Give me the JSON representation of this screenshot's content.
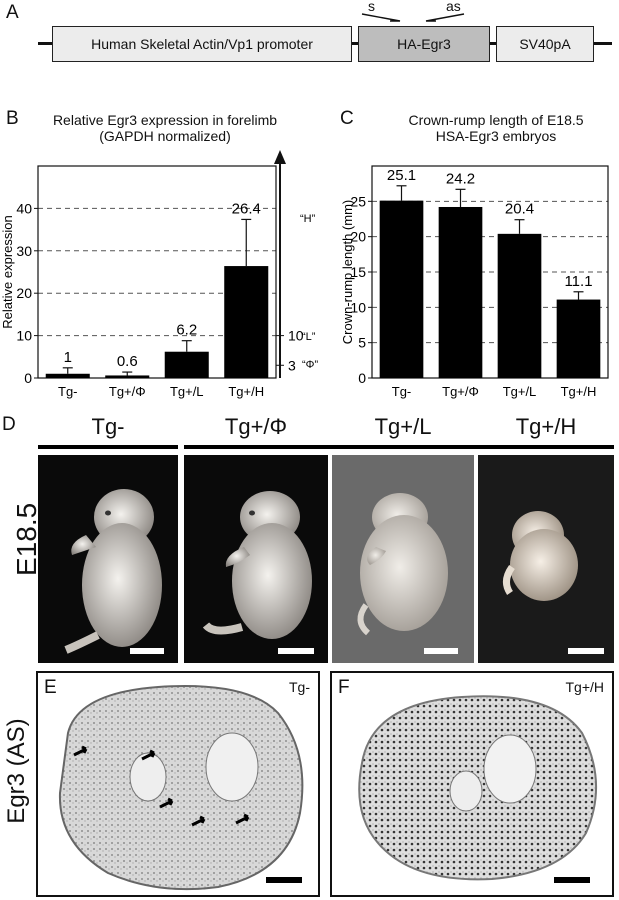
{
  "panels": {
    "a": "A",
    "b": "B",
    "c": "C",
    "d": "D",
    "e": "E",
    "f": "F"
  },
  "construct": {
    "promoter": "Human Skeletal Actin/Vp1 promoter",
    "gene": "HA-Egr3",
    "polya": "SV40pA",
    "primer_s": "s",
    "primer_as": "as"
  },
  "chart_data": [
    {
      "type": "bar",
      "title": "Relative Egr3 expression in forelimb (GAPDH normalized)",
      "title_line1": "Relative Egr3 expression in forelimb",
      "title_line2": "(GAPDH normalized)",
      "ylabel": "Relative expression",
      "xlabel": "",
      "ylim": [
        0,
        50
      ],
      "yticks": [
        "0",
        "10",
        "20",
        "30",
        "40"
      ],
      "categories": [
        "Tg-",
        "Tg+/Φ",
        "Tg+/L",
        "Tg+/H"
      ],
      "values": [
        1,
        0.6,
        6.2,
        26.4
      ],
      "value_labels": [
        "1",
        "0.6",
        "6.2",
        "26.4"
      ],
      "error": [
        1.4,
        0.8,
        2.6,
        11
      ],
      "grid": "dashed horizontal",
      "bar_color": "#000000",
      "side_scale": {
        "ticks": [
          "3",
          "10"
        ],
        "tick_values": [
          3,
          10
        ],
        "levels": [
          "“H”",
          "“L”",
          "“Φ”"
        ]
      }
    },
    {
      "type": "bar",
      "title": "Crown-rump length of E18.5 HSA-Egr3 embryos",
      "title_line1": "Crown-rump length of E18.5",
      "title_line2": "HSA-Egr3 embryos",
      "ylabel": "Crown-rump length (mm)",
      "xlabel": "",
      "ylim": [
        0,
        30
      ],
      "yticks": [
        "0",
        "5",
        "10",
        "15",
        "20",
        "25"
      ],
      "categories": [
        "Tg-",
        "Tg+/Φ",
        "Tg+/L",
        "Tg+/H"
      ],
      "values": [
        25.1,
        24.2,
        20.4,
        11.1
      ],
      "value_labels": [
        "25.1",
        "24.2",
        "20.4",
        "11.1"
      ],
      "error": [
        2.1,
        2.5,
        2.0,
        1.1
      ],
      "grid": "dashed horizontal",
      "bar_color": "#000000"
    }
  ],
  "embryos": {
    "stage": "E18.5",
    "groups": [
      "Tg-",
      "Tg+/Φ",
      "Tg+/L",
      "Tg+/H"
    ]
  },
  "sections": {
    "row_label": "Egr3 (AS)",
    "left_tag": "Tg-",
    "right_tag": "Tg+/H"
  }
}
